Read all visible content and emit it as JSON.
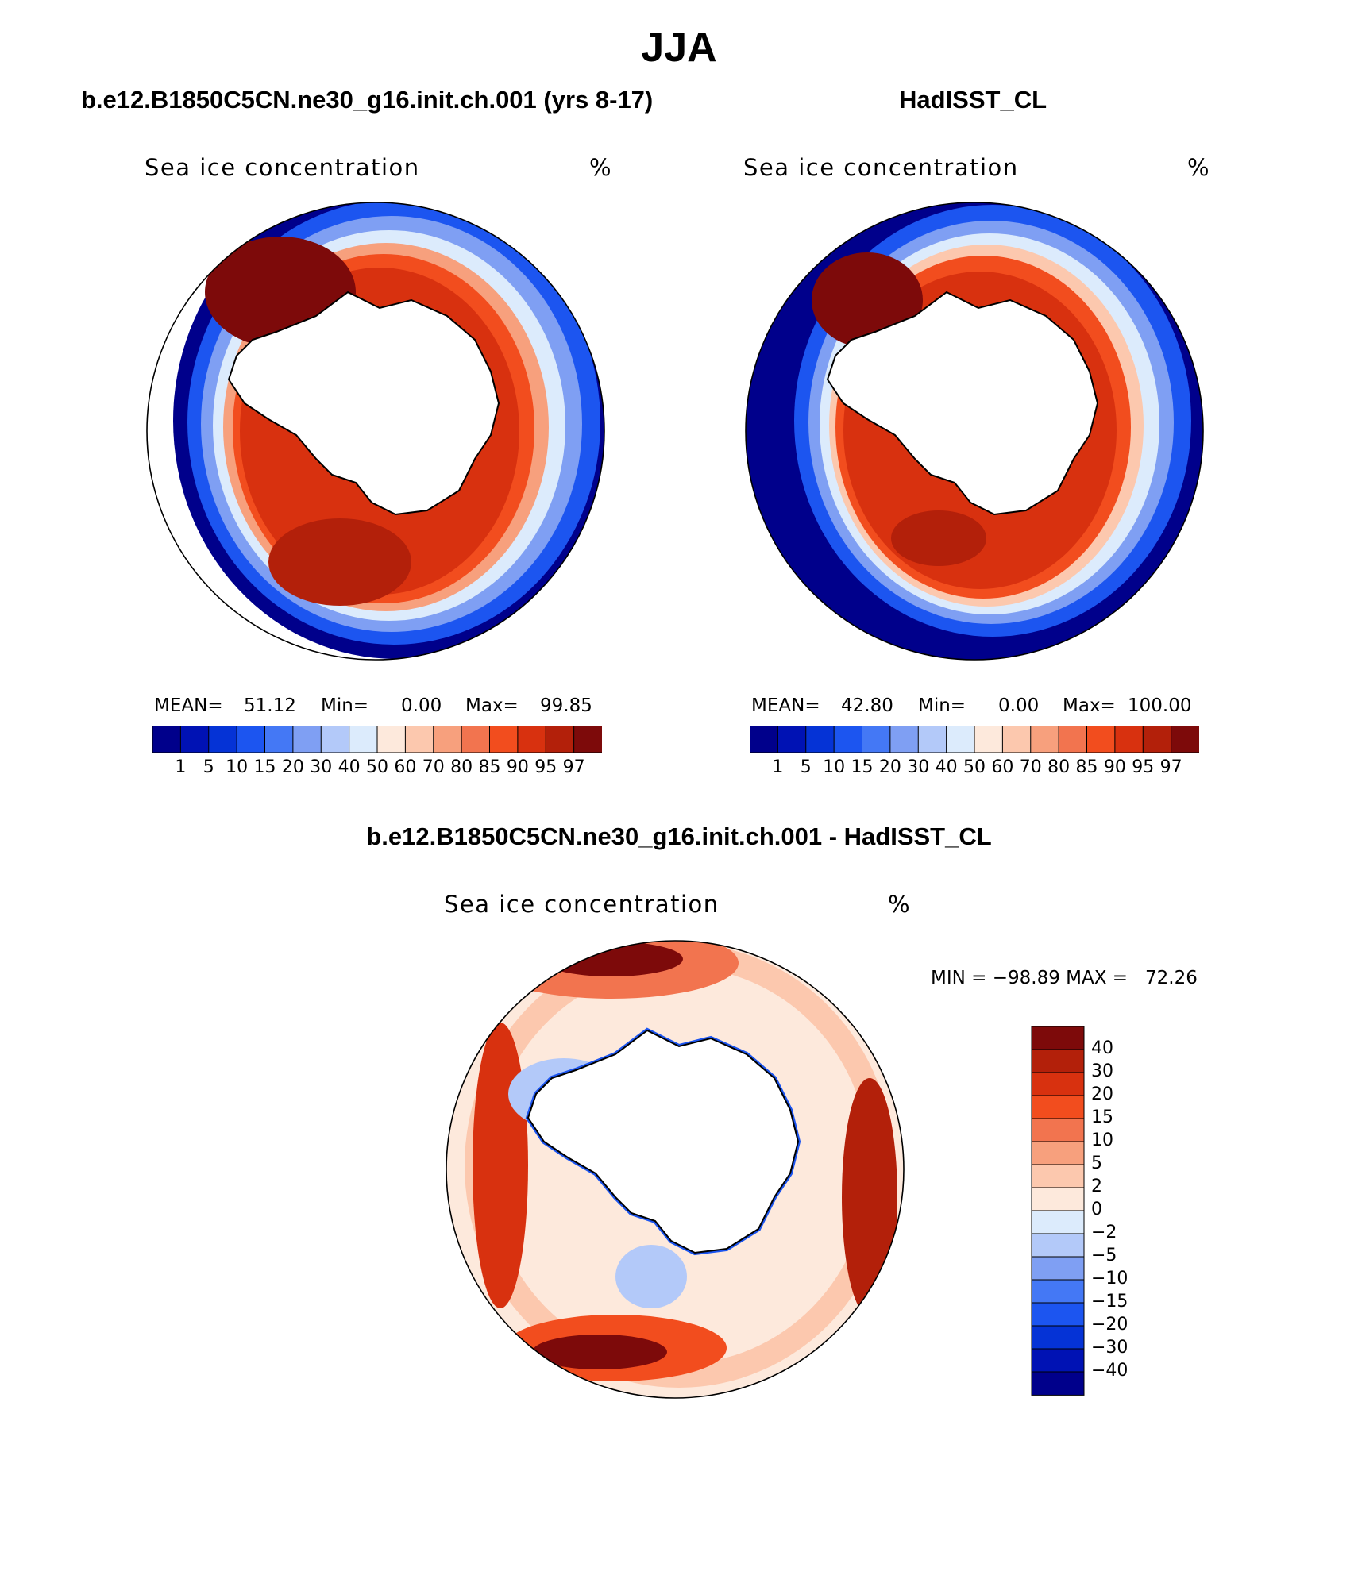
{
  "page_title": "JJA",
  "panels": [
    {
      "title": "b.e12.B1850C5CN.ne30_g16.init.ch.001 (yrs 8-17)",
      "field": "Sea ice concentration",
      "units": "%",
      "mean_label": "MEAN=",
      "mean": "51.12",
      "min_label": "Min=",
      "min": "0.00",
      "max_label": "Max=",
      "max": "99.85"
    },
    {
      "title": "HadISST_CL",
      "field": "Sea ice concentration",
      "units": "%",
      "mean_label": "MEAN=",
      "mean": "42.80",
      "min_label": "Min=",
      "min": "0.00",
      "max_label": "Max=",
      "max": "100.00"
    }
  ],
  "diff_panel": {
    "title": "b.e12.B1850C5CN.ne30_g16.init.ch.001 - HadISST_CL",
    "field": "Sea ice concentration",
    "units": "%",
    "minmax_text": "MIN = −98.89 MAX =   72.26"
  },
  "chart_data": [
    {
      "type": "heatmap",
      "title": "b.e12.B1850C5CN.ne30_g16.init.ch.001 (yrs 8-17)",
      "projection": "south polar stereographic",
      "variable": "Sea ice concentration",
      "units": "%",
      "mean": 51.12,
      "min": 0.0,
      "max": 99.85,
      "contour_levels": [
        1,
        5,
        10,
        15,
        20,
        30,
        40,
        50,
        60,
        70,
        80,
        85,
        90,
        95,
        97
      ],
      "tick_labels": [
        "1",
        "5",
        "10",
        "15",
        "20",
        "30",
        "40",
        "50",
        "60",
        "70",
        "80",
        "85",
        "90",
        "95",
        "97"
      ],
      "colors": [
        "#00008b",
        "#0012b4",
        "#0533d6",
        "#1c55f0",
        "#4478f5",
        "#7f9ff3",
        "#b3c9f9",
        "#dcebfc",
        "#fde9dc",
        "#fcc8ae",
        "#f7a07d",
        "#f2744f",
        "#f24d1e",
        "#d8310f",
        "#b3200a",
        "#7d0a0a"
      ]
    },
    {
      "type": "heatmap",
      "title": "HadISST_CL",
      "projection": "south polar stereographic",
      "variable": "Sea ice concentration",
      "units": "%",
      "mean": 42.8,
      "min": 0.0,
      "max": 100.0,
      "contour_levels": [
        1,
        5,
        10,
        15,
        20,
        30,
        40,
        50,
        60,
        70,
        80,
        85,
        90,
        95,
        97
      ],
      "tick_labels": [
        "1",
        "5",
        "10",
        "15",
        "20",
        "30",
        "40",
        "50",
        "60",
        "70",
        "80",
        "85",
        "90",
        "95",
        "97"
      ],
      "colors": [
        "#00008b",
        "#0012b4",
        "#0533d6",
        "#1c55f0",
        "#4478f5",
        "#7f9ff3",
        "#b3c9f9",
        "#dcebfc",
        "#fde9dc",
        "#fcc8ae",
        "#f7a07d",
        "#f2744f",
        "#f24d1e",
        "#d8310f",
        "#b3200a",
        "#7d0a0a"
      ]
    },
    {
      "type": "heatmap",
      "title": "b.e12.B1850C5CN.ne30_g16.init.ch.001 - HadISST_CL",
      "projection": "south polar stereographic",
      "variable": "Sea ice concentration",
      "units": "%",
      "min": -98.89,
      "max": 72.26,
      "contour_levels": [
        -40,
        -30,
        -20,
        -15,
        -10,
        -5,
        -2,
        0,
        2,
        5,
        10,
        15,
        20,
        30,
        40
      ],
      "tick_labels": [
        "40",
        "30",
        "20",
        "15",
        "10",
        "5",
        "2",
        "0",
        "−2",
        "−5",
        "−10",
        "−15",
        "−20",
        "−30",
        "−40"
      ],
      "colors": [
        "#7d0a0a",
        "#b3200a",
        "#d8310f",
        "#f24d1e",
        "#f2744f",
        "#f7a07d",
        "#fcc8ae",
        "#fde9dc",
        "#dcebfc",
        "#b3c9f9",
        "#7f9ff3",
        "#4478f5",
        "#1c55f0",
        "#0533d6",
        "#0012b4",
        "#00008b"
      ]
    }
  ]
}
